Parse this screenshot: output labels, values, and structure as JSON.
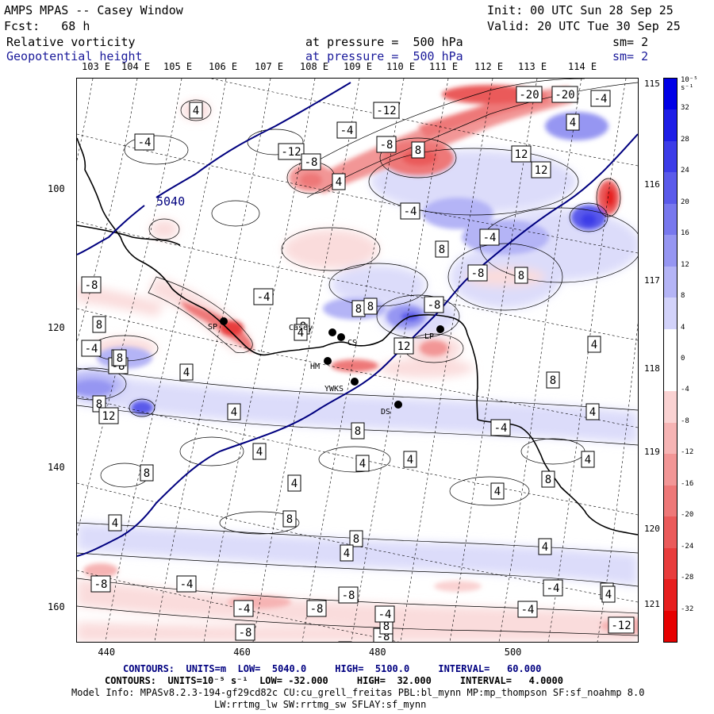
{
  "header": {
    "title": "AMPS MPAS -- Casey Window",
    "init": "Init: 00 UTC Sun 28 Sep 25",
    "fcst": "Fcst:   68 h",
    "valid": "Valid: 20 UTC Tue 30 Sep 25",
    "field1": "Relative vorticity",
    "field1_level": "at pressure =  500 hPa",
    "field1_sm": "sm= 2",
    "field2": "Geopotential height",
    "field2_level": "at pressure =  500 hPa",
    "field2_sm": "sm= 2"
  },
  "footer": {
    "contours1": "CONTOURS:  UNITS=m  LOW=  5040.0     HIGH=  5100.0     INTERVAL=   60.000",
    "contours2": "CONTOURS:  UNITS=10⁻⁵ s⁻¹  LOW= -32.000     HIGH=  32.000     INTERVAL=   4.0000",
    "model_info": "Model Info: MPASv8.2.3-194-gf29cd82c CU:cu_grell_freitas PBL:bl_mynn MP:mp_thompson SF:sf_noahmp 8.0",
    "model_info2": "LW:rrtmg_lw SW:rrtmg_sw SFLAY:sf_mynn"
  },
  "chart_data": {
    "type": "heatmap",
    "title": "AMPS MPAS -- Casey Window",
    "x_ticks": [
      440,
      460,
      480,
      500
    ],
    "y_ticks": [
      100,
      120,
      140,
      160
    ],
    "xlim": [
      435.5,
      518.3
    ],
    "ylim": [
      164.8,
      84
    ],
    "lon_labels": [
      "103 E",
      "104 E",
      "105 E",
      "106 E",
      "107 E",
      "108 E",
      "109 E",
      "110 E",
      "111 E",
      "112 E",
      "113 E",
      "114 E"
    ],
    "lat_labels": [
      "115 E",
      "116 E",
      "117 E",
      "118 E",
      "119 E",
      "120 E",
      "121 E"
    ],
    "colorbar": {
      "unit_label": "10⁻⁵ s⁻¹",
      "levels": [
        32,
        28,
        24,
        20,
        16,
        12,
        8,
        4,
        0,
        -4,
        -8,
        -12,
        -16,
        -20,
        -24,
        -28,
        -32
      ],
      "level_labels": [
        "32",
        "28",
        "24",
        "20",
        "16",
        "12",
        "8",
        "4",
        "0",
        "-4",
        "-8",
        "-12",
        "-16",
        "-20",
        "-24",
        "-28",
        "-32"
      ],
      "colors": [
        "#0000e6",
        "#1e1ee6",
        "#3c3ce8",
        "#5a5aea",
        "#7878ee",
        "#9696f2",
        "#b4b4f6",
        "#d2d2fa",
        "#ffffff",
        "#ffffff",
        "#fad2d2",
        "#f6b4b4",
        "#f29696",
        "#ee7878",
        "#ea5a5a",
        "#e83c3c",
        "#e61e1e",
        "#e60000"
      ]
    },
    "height_contour": {
      "value": 5040,
      "label": "5040",
      "color": "#00007f"
    },
    "vorticity_contour_labels": [
      "4",
      "-4",
      "-12",
      "-4",
      "-8",
      "-12",
      "-20",
      "-20",
      "-4",
      "4",
      "12",
      "12",
      "8",
      "4",
      "-4",
      "-8",
      "-4",
      "8",
      "-4",
      "8",
      "8",
      "4",
      "-8",
      "8",
      "12",
      "-8",
      "-4",
      "8",
      "8",
      "4",
      "8",
      "-8",
      "4",
      "-8",
      "8",
      "12",
      "8",
      "4",
      "4",
      "8",
      "-4",
      "4",
      "8",
      "4",
      "4",
      "4",
      "8",
      "4",
      "4",
      "4",
      "8",
      "4",
      "8",
      "4",
      "8",
      "-8",
      "-4",
      "-8",
      "-4",
      "-8",
      "-4",
      "-8",
      "-4",
      "8",
      "4",
      "8",
      "-12",
      "4",
      "-4",
      "-8"
    ],
    "stations": [
      {
        "name": "SP"
      },
      {
        "name": "Casey"
      },
      {
        "name": "CS"
      },
      {
        "name": "LP"
      },
      {
        "name": "HM"
      },
      {
        "name": "YWKS"
      },
      {
        "name": "DS"
      }
    ]
  }
}
